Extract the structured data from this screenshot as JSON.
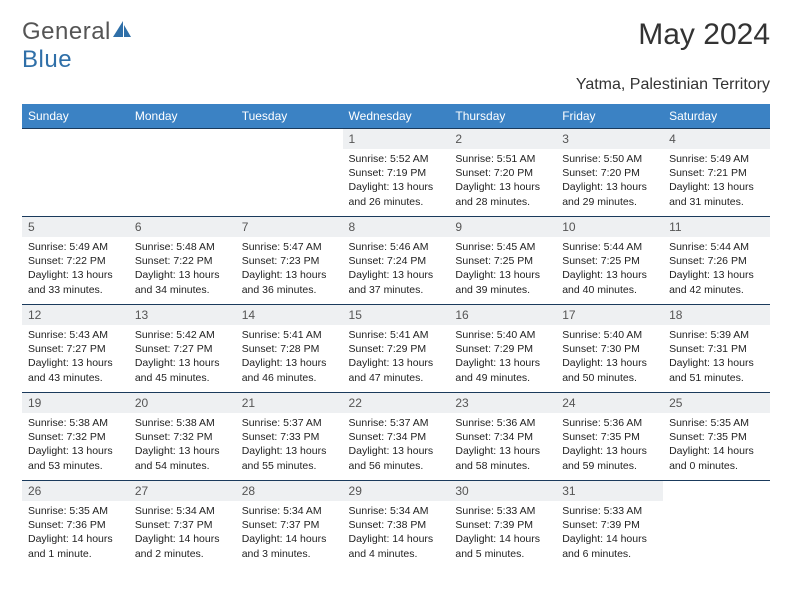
{
  "logo": {
    "text1": "General",
    "text2": "Blue",
    "color1": "#6b6b6b",
    "color2": "#2f6fa8"
  },
  "title": "May 2024",
  "location": "Yatma, Palestinian Territory",
  "header_bg": "#3b82c4",
  "border_color": "#1a3a5c",
  "daynum_bg": "#eef0f2",
  "weekdays": [
    "Sunday",
    "Monday",
    "Tuesday",
    "Wednesday",
    "Thursday",
    "Friday",
    "Saturday"
  ],
  "days": [
    null,
    null,
    null,
    {
      "n": "1",
      "sr": "5:52 AM",
      "ss": "7:19 PM",
      "dl": "13 hours and 26 minutes."
    },
    {
      "n": "2",
      "sr": "5:51 AM",
      "ss": "7:20 PM",
      "dl": "13 hours and 28 minutes."
    },
    {
      "n": "3",
      "sr": "5:50 AM",
      "ss": "7:20 PM",
      "dl": "13 hours and 29 minutes."
    },
    {
      "n": "4",
      "sr": "5:49 AM",
      "ss": "7:21 PM",
      "dl": "13 hours and 31 minutes."
    },
    {
      "n": "5",
      "sr": "5:49 AM",
      "ss": "7:22 PM",
      "dl": "13 hours and 33 minutes."
    },
    {
      "n": "6",
      "sr": "5:48 AM",
      "ss": "7:22 PM",
      "dl": "13 hours and 34 minutes."
    },
    {
      "n": "7",
      "sr": "5:47 AM",
      "ss": "7:23 PM",
      "dl": "13 hours and 36 minutes."
    },
    {
      "n": "8",
      "sr": "5:46 AM",
      "ss": "7:24 PM",
      "dl": "13 hours and 37 minutes."
    },
    {
      "n": "9",
      "sr": "5:45 AM",
      "ss": "7:25 PM",
      "dl": "13 hours and 39 minutes."
    },
    {
      "n": "10",
      "sr": "5:44 AM",
      "ss": "7:25 PM",
      "dl": "13 hours and 40 minutes."
    },
    {
      "n": "11",
      "sr": "5:44 AM",
      "ss": "7:26 PM",
      "dl": "13 hours and 42 minutes."
    },
    {
      "n": "12",
      "sr": "5:43 AM",
      "ss": "7:27 PM",
      "dl": "13 hours and 43 minutes."
    },
    {
      "n": "13",
      "sr": "5:42 AM",
      "ss": "7:27 PM",
      "dl": "13 hours and 45 minutes."
    },
    {
      "n": "14",
      "sr": "5:41 AM",
      "ss": "7:28 PM",
      "dl": "13 hours and 46 minutes."
    },
    {
      "n": "15",
      "sr": "5:41 AM",
      "ss": "7:29 PM",
      "dl": "13 hours and 47 minutes."
    },
    {
      "n": "16",
      "sr": "5:40 AM",
      "ss": "7:29 PM",
      "dl": "13 hours and 49 minutes."
    },
    {
      "n": "17",
      "sr": "5:40 AM",
      "ss": "7:30 PM",
      "dl": "13 hours and 50 minutes."
    },
    {
      "n": "18",
      "sr": "5:39 AM",
      "ss": "7:31 PM",
      "dl": "13 hours and 51 minutes."
    },
    {
      "n": "19",
      "sr": "5:38 AM",
      "ss": "7:32 PM",
      "dl": "13 hours and 53 minutes."
    },
    {
      "n": "20",
      "sr": "5:38 AM",
      "ss": "7:32 PM",
      "dl": "13 hours and 54 minutes."
    },
    {
      "n": "21",
      "sr": "5:37 AM",
      "ss": "7:33 PM",
      "dl": "13 hours and 55 minutes."
    },
    {
      "n": "22",
      "sr": "5:37 AM",
      "ss": "7:34 PM",
      "dl": "13 hours and 56 minutes."
    },
    {
      "n": "23",
      "sr": "5:36 AM",
      "ss": "7:34 PM",
      "dl": "13 hours and 58 minutes."
    },
    {
      "n": "24",
      "sr": "5:36 AM",
      "ss": "7:35 PM",
      "dl": "13 hours and 59 minutes."
    },
    {
      "n": "25",
      "sr": "5:35 AM",
      "ss": "7:35 PM",
      "dl": "14 hours and 0 minutes."
    },
    {
      "n": "26",
      "sr": "5:35 AM",
      "ss": "7:36 PM",
      "dl": "14 hours and 1 minute."
    },
    {
      "n": "27",
      "sr": "5:34 AM",
      "ss": "7:37 PM",
      "dl": "14 hours and 2 minutes."
    },
    {
      "n": "28",
      "sr": "5:34 AM",
      "ss": "7:37 PM",
      "dl": "14 hours and 3 minutes."
    },
    {
      "n": "29",
      "sr": "5:34 AM",
      "ss": "7:38 PM",
      "dl": "14 hours and 4 minutes."
    },
    {
      "n": "30",
      "sr": "5:33 AM",
      "ss": "7:39 PM",
      "dl": "14 hours and 5 minutes."
    },
    {
      "n": "31",
      "sr": "5:33 AM",
      "ss": "7:39 PM",
      "dl": "14 hours and 6 minutes."
    },
    null
  ],
  "labels": {
    "sunrise": "Sunrise:",
    "sunset": "Sunset:",
    "daylight": "Daylight:"
  }
}
